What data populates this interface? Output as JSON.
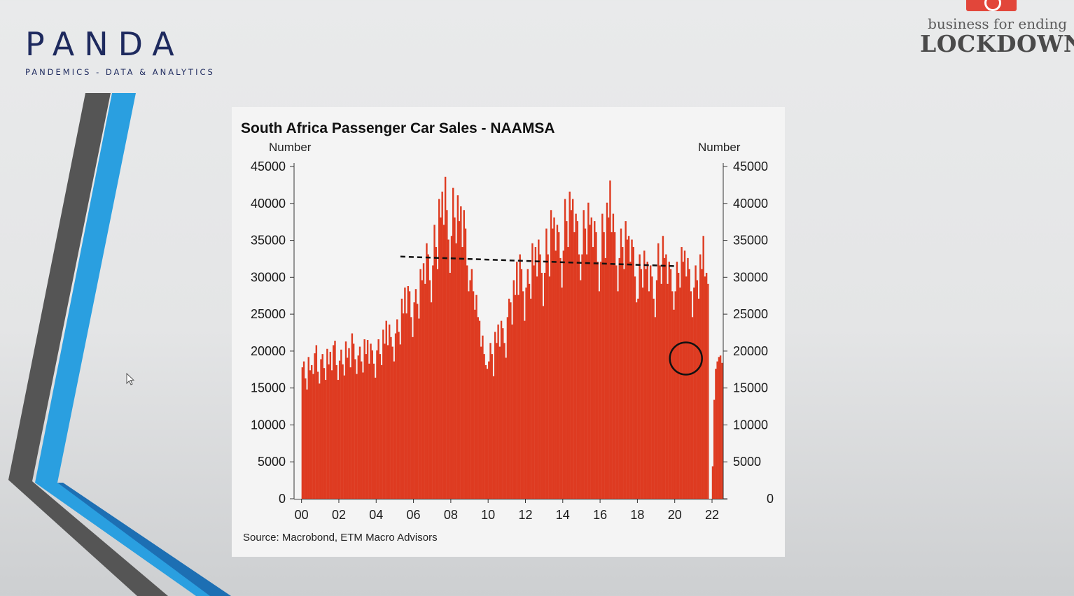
{
  "branding": {
    "logo_text": "PANDA",
    "logo_subtitle": "PANDEMICS - DATA & ANALYTICS",
    "partner_line1": "business for ending",
    "partner_line2": "LOCKDOWN"
  },
  "colors": {
    "bar": "#de3b21",
    "panda_navy": "#1e2a5e",
    "panda_blue": "#1ea3d8",
    "deco_gray": "#555555"
  },
  "chart_data": {
    "type": "bar",
    "title": "South Africa Passenger Car Sales - NAAMSA",
    "ylabel_left": "Number",
    "ylabel_right": "Number",
    "source": "Source: Macrobond, ETM Macro Advisors",
    "ylim": [
      0,
      45000
    ],
    "yticks": [
      "0",
      "5000",
      "10000",
      "15000",
      "20000",
      "25000",
      "30000",
      "35000",
      "40000",
      "45000"
    ],
    "xlim": [
      1999.6,
      2022.6
    ],
    "xticks": [
      "00",
      "02",
      "04",
      "06",
      "08",
      "10",
      "12",
      "14",
      "16",
      "18",
      "20",
      "22"
    ],
    "xtick_years": [
      2000,
      2002,
      2004,
      2006,
      2008,
      2010,
      2012,
      2014,
      2016,
      2018,
      2020,
      2022
    ],
    "start_year": 2000.0,
    "step_years": 0.0833,
    "series": [
      {
        "values": [
          17800,
          18600,
          16300,
          14800,
          19200,
          17400,
          18100,
          16900,
          19700,
          20800,
          17200,
          15600,
          18900,
          19600,
          17700,
          16100,
          20300,
          18200,
          19900,
          17400,
          20800,
          21400,
          18100,
          16100,
          18700,
          20200,
          18200,
          16700,
          21300,
          19100,
          20400,
          17800,
          22400,
          21000,
          18900,
          16900,
          19400,
          20600,
          18600,
          17100,
          21600,
          19600,
          21500,
          18300,
          21000,
          20100,
          18300,
          16400,
          20100,
          21600,
          19600,
          18100,
          22900,
          21000,
          24100,
          20800,
          23600,
          21900,
          20600,
          18600,
          22400,
          24300,
          22600,
          20900,
          27100,
          25100,
          28600,
          25100,
          28800,
          28100,
          24600,
          21900,
          26600,
          28400,
          26400,
          24400,
          31100,
          29600,
          31900,
          29100,
          34600,
          33100,
          29600,
          26600,
          31600,
          37100,
          34100,
          31100,
          40600,
          38100,
          41600,
          37100,
          43600,
          39100,
          35100,
          30600,
          35600,
          42100,
          38100,
          34600,
          41100,
          37600,
          39600,
          34100,
          39100,
          36600,
          31600,
          28100,
          29600,
          31100,
          28100,
          25600,
          27600,
          24600,
          24100,
          20600,
          22100,
          19600,
          18100,
          17600,
          18600,
          21100,
          19600,
          16600,
          22600,
          21100,
          23600,
          20600,
          24100,
          23100,
          21100,
          19100,
          24600,
          27100,
          26600,
          23600,
          29600,
          27600,
          32100,
          27600,
          33100,
          31100,
          28100,
          24100,
          28600,
          31100,
          29100,
          27100,
          34600,
          31600,
          34100,
          30100,
          35100,
          33100,
          30600,
          26100,
          30600,
          36600,
          33100,
          30100,
          39100,
          36600,
          38100,
          33600,
          37100,
          36100,
          32600,
          28600,
          33600,
          40600,
          37600,
          34100,
          41600,
          39100,
          40600,
          36100,
          38600,
          37600,
          33100,
          29600,
          33100,
          39100,
          36600,
          33100,
          40100,
          37100,
          38100,
          34100,
          37600,
          36100,
          32100,
          28100,
          32100,
          38600,
          36100,
          32600,
          40100,
          38100,
          43100,
          36100,
          38600,
          36100,
          31600,
          28100,
          32600,
          36600,
          34100,
          31100,
          37600,
          35100,
          35600,
          32100,
          35100,
          34100,
          30100,
          26600,
          27100,
          33100,
          31100,
          28600,
          33600,
          31100,
          32100,
          28100,
          31600,
          30100,
          27100,
          24600,
          29600,
          34600,
          31600,
          29100,
          35600,
          32600,
          33100,
          29100,
          32100,
          31100,
          28100,
          25600,
          28100,
          32100,
          30600,
          28600,
          34100,
          32100,
          33600,
          30100,
          32600,
          31100,
          28100,
          24600,
          28600,
          31600,
          29600,
          27100,
          33100,
          31100,
          35600,
          30100,
          30600,
          29100,
          0,
          0,
          4400,
          13400,
          17600,
          18600,
          19200,
          19400,
          18400
        ]
      }
    ],
    "trend": {
      "style": "dashed",
      "x": [
        2005.3,
        2020.1
      ],
      "y": [
        32800,
        31500
      ]
    },
    "highlight": {
      "shape": "circle",
      "x": 2020.6,
      "y": 19000
    }
  }
}
